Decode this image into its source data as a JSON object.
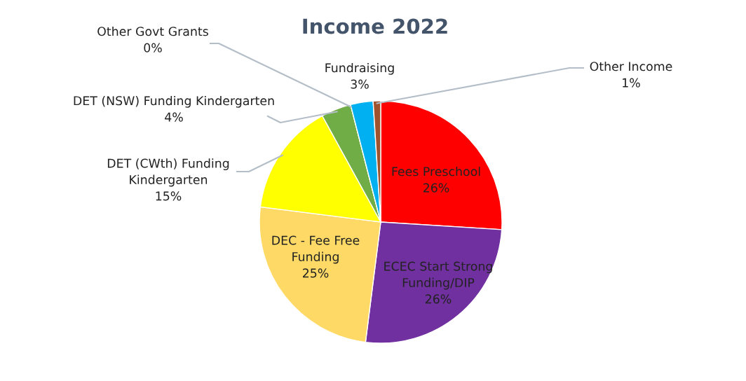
{
  "chart_data": {
    "type": "pie",
    "title": "Income 2022",
    "categories": [
      "Fees Preschool",
      "ECEC Start Strong Funding/DIP",
      "DEC - Fee Free Funding",
      "DET (CWth) Funding Kindergarten",
      "DET (NSW) Funding Kindergarten",
      "Other Govt Grants",
      "Fundraising",
      "Other Income"
    ],
    "values": [
      26,
      26,
      25,
      15,
      4,
      0,
      3,
      1
    ],
    "value_labels": [
      "26%",
      "26%",
      "25%",
      "15%",
      "4%",
      "0%",
      "3%",
      "1%"
    ],
    "colors": [
      "#ff0000",
      "#7030a0",
      "#ffd966",
      "#ffff00",
      "#70ad47",
      "#a5a5a5",
      "#00b0f0",
      "#a0522d"
    ]
  }
}
